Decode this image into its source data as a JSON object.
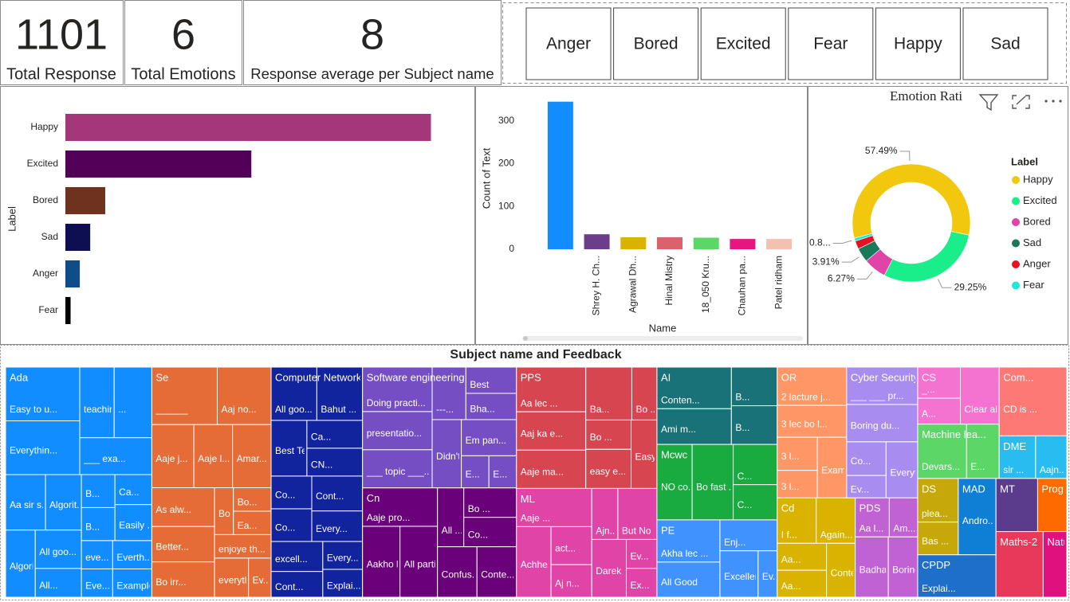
{
  "cards": [
    {
      "value": 1101,
      "label": "Total Response"
    },
    {
      "value": 6,
      "label": "Total Emotions"
    },
    {
      "value": 8,
      "label": "Response average per Subject name"
    }
  ],
  "slicer": {
    "items": [
      "Anger",
      "Bored",
      "Excited",
      "Fear",
      "Happy",
      "Sad"
    ]
  },
  "chart_data": [
    {
      "type": "bar",
      "orientation": "horizontal",
      "y_label": "Label",
      "categories": [
        "Happy",
        "Excited",
        "Bored",
        "Sad",
        "Anger",
        "Fear"
      ],
      "values": [
        633,
        322,
        69,
        43,
        25,
        9
      ],
      "colors": [
        "#a4367a",
        "#520058",
        "#6f321e",
        "#0e0e52",
        "#0e4d8a",
        "#000000"
      ],
      "xlim": [
        0,
        700
      ]
    },
    {
      "type": "bar",
      "orientation": "vertical",
      "y_label": "Count of Text",
      "x_label": "Name",
      "categories": [
        null,
        "Shrey H. Ch...",
        "Agrawal Dh...",
        "Hinal Mistry",
        "18_050 Kru...",
        "Chauhan pa...",
        "Patel ridham"
      ],
      "values": [
        345,
        35,
        28,
        28,
        27,
        24,
        24
      ],
      "colors": [
        "#118dff",
        "#6b3e8c",
        "#d9b300",
        "#d9626b",
        "#5bd667",
        "#e6157f",
        "#f2c1b0"
      ],
      "ylim": [
        0,
        350
      ],
      "yticks": [
        0,
        100,
        200,
        300
      ],
      "grid": false
    },
    {
      "type": "pie",
      "title": "Emotion Rati",
      "legend_title": "Label",
      "categories": [
        "Happy",
        "Excited",
        "Bored",
        "Sad",
        "Anger",
        "Fear"
      ],
      "values": [
        57.49,
        29.25,
        6.27,
        3.91,
        2.26,
        0.82
      ],
      "value_labels": [
        "57.49%",
        "29.25%",
        "6.27%",
        "3.91%",
        null,
        "0.8..."
      ],
      "colors": [
        "#f2c80f",
        "#19ee8a",
        "#e044a7",
        "#197a5a",
        "#e81123",
        "#1de9d6"
      ]
    },
    {
      "type": "treemap",
      "title": "Subject name and Feedback",
      "groups": [
        {
          "name": "Ada",
          "color": "#118dff",
          "cells": [
            {
              "label": "Easy to u...",
              "value": 18
            },
            {
              "label": "Everythin...",
              "value": 18
            },
            {
              "label": "teaching...",
              "value": 11
            },
            {
              "label": "...",
              "value": 12
            },
            {
              "label": "___ exa...",
              "value": 12
            },
            {
              "label": "Aa sir s...",
              "value": 10
            },
            {
              "label": "Algorit...",
              "value": 9
            },
            {
              "label": "Algorit...",
              "value": 9
            },
            {
              "label": "All goo...",
              "value": 8
            },
            {
              "label": "All...",
              "value": 6
            },
            {
              "label": "B...",
              "value": 5
            },
            {
              "label": "B...",
              "value": 5
            },
            {
              "label": "Ca...",
              "value": 5
            },
            {
              "label": "Easily ...",
              "value": 6
            },
            {
              "label": "eve...",
              "value": 4
            },
            {
              "label": "Eve...",
              "value": 4
            },
            {
              "label": "Everth...",
              "value": 5
            },
            {
              "label": "Example m...",
              "value": 5
            }
          ]
        },
        {
          "name": "Se",
          "color": "#e66c37",
          "cells": [
            {
              "label": "______",
              "value": 17
            },
            {
              "label": "Aaj no...",
              "value": 14
            },
            {
              "label": "Aaje j...",
              "value": 12
            },
            {
              "label": "Aaje l...",
              "value": 11
            },
            {
              "label": "Amar...",
              "value": 11
            },
            {
              "label": "As alw...",
              "value": 11
            },
            {
              "label": "Better...",
              "value": 10
            },
            {
              "label": "Bo irr...",
              "value": 10
            },
            {
              "label": "Bo...",
              "value": 4
            },
            {
              "label": "Bo...",
              "value": 4
            },
            {
              "label": "Ea...",
              "value": 4
            },
            {
              "label": "enjoye th...",
              "value": 6
            },
            {
              "label": "everythin...",
              "value": 6
            },
            {
              "label": "Ev...",
              "value": 4
            }
          ]
        },
        {
          "name": "Computer Network",
          "color": "#12239e",
          "cells": [
            {
              "label": "All goo...",
              "value": 11
            },
            {
              "label": "Bahut ...",
              "value": 11
            },
            {
              "label": "Best Te...",
              "value": 9
            },
            {
              "label": "Ca...",
              "value": 7
            },
            {
              "label": "CN...",
              "value": 7
            },
            {
              "label": "Co...",
              "value": 6
            },
            {
              "label": "Co...",
              "value": 6
            },
            {
              "label": "Cont...",
              "value": 8
            },
            {
              "label": "Every...",
              "value": 7
            },
            {
              "label": "excell...",
              "value": 7
            },
            {
              "label": "Cont...",
              "value": 6
            },
            {
              "label": "Every...",
              "value": 5
            },
            {
              "label": "Explai...",
              "value": 5
            }
          ]
        },
        {
          "name": "Software engineering",
          "color": "#744ec2",
          "cells": [
            {
              "label": "Doing practi...",
              "value": 14
            },
            {
              "label": "presentatio...",
              "value": 12
            },
            {
              "label": "___ topic ___...",
              "value": 12
            },
            {
              "label": "---...",
              "value": 8
            },
            {
              "label": "Best",
              "value": 6
            },
            {
              "label": "Bha...",
              "value": 6
            },
            {
              "label": "Didn't ...",
              "value": 9
            },
            {
              "label": "Em pan...",
              "value": 9
            },
            {
              "label": "E...",
              "value": 4
            },
            {
              "label": "E...",
              "value": 4
            }
          ]
        },
        {
          "name": "Cn",
          "color": "#6b007b",
          "cells": [
            {
              "label": "Aaje pro...",
              "value": 13
            },
            {
              "label": "Aakho l...",
              "value": 12
            },
            {
              "label": "All parti...",
              "value": 12
            },
            {
              "label": "All ...",
              "value": 7
            },
            {
              "label": "Bo ...",
              "value": 7
            },
            {
              "label": "Co...",
              "value": 7
            },
            {
              "label": "Confus...",
              "value": 9
            },
            {
              "label": "Conte...",
              "value": 9
            }
          ]
        },
        {
          "name": "PPS",
          "color": "#d64550",
          "cells": [
            {
              "label": "Aa lec ...",
              "value": 14
            },
            {
              "label": "Aaj ka e...",
              "value": 12
            },
            {
              "label": "Aaje ma...",
              "value": 12
            },
            {
              "label": "Ba...",
              "value": 11
            },
            {
              "label": "Bo ...",
              "value": 6
            },
            {
              "label": "Bo ...",
              "value": 6
            },
            {
              "label": "easy e...",
              "value": 8
            },
            {
              "label": "Easy t...",
              "value": 8
            }
          ]
        },
        {
          "name": "ML",
          "color": "#e044a7",
          "cells": [
            {
              "label": "Aaje ...",
              "value": 13
            },
            {
              "label": "Achhe...",
              "value": 11
            },
            {
              "label": "act...",
              "value": 7
            },
            {
              "label": "Aj n...",
              "value": 6
            },
            {
              "label": "Ajn...",
              "value": 6
            },
            {
              "label": "But No ...",
              "value": 9
            },
            {
              "label": "Darek p...",
              "value": 9
            },
            {
              "label": "Ev...",
              "value": 4
            },
            {
              "label": "Ex...",
              "value": 4
            }
          ]
        },
        {
          "name": "AI",
          "color": "#197278",
          "cells": [
            {
              "label": "Conten...",
              "value": 14
            },
            {
              "label": "Ami m...",
              "value": 12
            },
            {
              "label": "B...",
              "value": 8
            },
            {
              "label": "B...",
              "value": 8
            }
          ]
        },
        {
          "name": "Mcwc",
          "color": "#1aab40",
          "cells": [
            {
              "label": "NO co...",
              "value": 12
            },
            {
              "label": "Bo fast ...",
              "value": 14
            },
            {
              "label": "C...",
              "value": 8
            },
            {
              "label": "C...",
              "value": 7
            }
          ]
        },
        {
          "name": "PE",
          "color": "#4092ff",
          "cells": [
            {
              "label": "Akha lec ...",
              "value": 12
            },
            {
              "label": "All Good",
              "value": 10
            },
            {
              "label": "Enj...",
              "value": 8
            },
            {
              "label": "Excellent ...",
              "value": 8
            },
            {
              "label": "Ev...",
              "value": 4
            }
          ]
        },
        {
          "name": "OR",
          "color": "#fe9666",
          "cells": [
            {
              "label": "2 lacture j...",
              "value": 12
            },
            {
              "label": "3 lec bo l...",
              "value": 10
            },
            {
              "label": "3 l...",
              "value": 6
            },
            {
              "label": "3 l...",
              "value": 5
            },
            {
              "label": "Example ...",
              "value": 8
            }
          ]
        },
        {
          "name": "Cyber Security",
          "color": "#a98cf0",
          "cells": [
            {
              "label": "___ ___ pr...",
              "value": 12
            },
            {
              "label": "Boring du...",
              "value": 12
            },
            {
              "label": "Co...",
              "value": 6
            },
            {
              "label": "Ev...",
              "value": 4
            },
            {
              "label": "Everythin...",
              "value": 8
            }
          ]
        },
        {
          "name": "Cd",
          "color": "#d9b300",
          "cells": [
            {
              "label": "I f...",
              "value": 8
            },
            {
              "label": "Again...",
              "value": 8
            },
            {
              "label": "Aa...",
              "value": 6
            },
            {
              "label": "Aa...",
              "value": 6
            },
            {
              "label": "Conte...",
              "value": 7
            }
          ]
        },
        {
          "name": "PDS",
          "color": "#c061d4",
          "cells": [
            {
              "label": "Aa l...",
              "value": 6
            },
            {
              "label": "Am...",
              "value": 5
            },
            {
              "label": "Badha lectu...",
              "value": 9
            },
            {
              "label": "Boring",
              "value": 8
            }
          ]
        },
        {
          "name": "CS",
          "color": "#f472d0",
          "cells": [
            {
              "label": "_...",
              "value": 6
            },
            {
              "label": "A...",
              "value": 5
            },
            {
              "label": "Clear all...",
              "value": 10
            }
          ]
        },
        {
          "name": "Machine lea...",
          "color": "#5bd667",
          "cells": [
            {
              "label": "Devars...",
              "value": 12
            },
            {
              "label": "E...",
              "value": 8
            }
          ]
        },
        {
          "name": "Com...",
          "color": "#fd7976",
          "cells": [
            {
              "label": "CD is ...",
              "value": 21
            }
          ]
        },
        {
          "name": "DME",
          "color": "#28bcf0",
          "cells": [
            {
              "label": "sir ...",
              "value": 7
            },
            {
              "label": "Aajn...",
              "value": 6
            }
          ]
        },
        {
          "name": "DS",
          "color": "#c6a80a",
          "cells": [
            {
              "label": "plea...",
              "value": 8
            },
            {
              "label": "Bas ...",
              "value": 6
            }
          ]
        },
        {
          "name": "MAD",
          "color": "#0f7fd6",
          "cells": [
            {
              "label": "Andro...",
              "value": 13
            }
          ]
        },
        {
          "name": "CPDP",
          "color": "#1d6fc9",
          "cells": [
            {
              "label": "Explai...",
              "value": 15
            }
          ]
        },
        {
          "name": "MT",
          "color": "#5b3b8c",
          "cells": [
            {
              "label": null,
              "value": 10
            }
          ]
        },
        {
          "name": "Prog...",
          "color": "#fe6a00",
          "cells": [
            {
              "label": null,
              "value": 7
            }
          ]
        },
        {
          "name": "Maths-2",
          "color": "#e8395b",
          "cells": [
            {
              "label": null,
              "value": 14
            }
          ]
        },
        {
          "name": "Natu...",
          "color": "#e0117f",
          "cells": [
            {
              "label": null,
              "value": 7
            }
          ]
        }
      ]
    }
  ]
}
